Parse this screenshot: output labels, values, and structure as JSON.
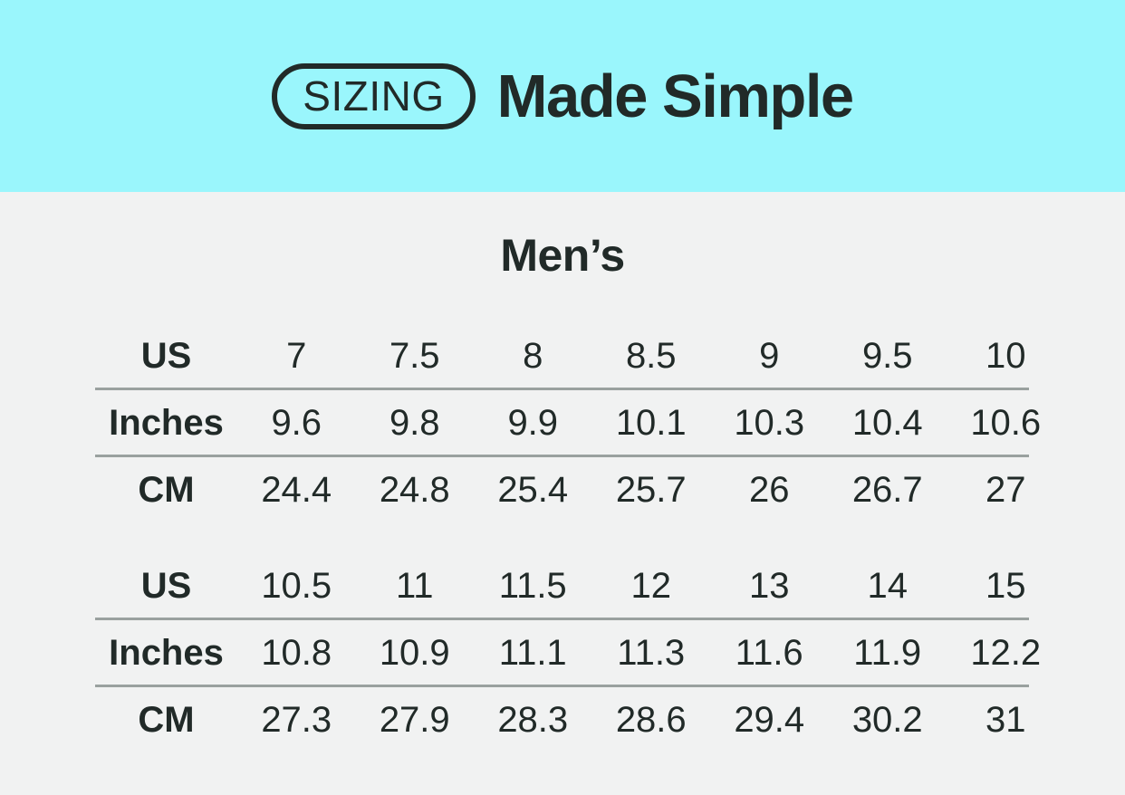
{
  "banner": {
    "badge_label": "SIZING",
    "title": "Made Simple",
    "background_color": "#9af6fc",
    "text_color": "#212a28"
  },
  "section_title": "Men’s",
  "colors": {
    "banner_bg": "#9af6fc",
    "body_bg": "#f1f2f2",
    "text": "#212a28",
    "rule": "#9aa19f"
  },
  "chart_data": {
    "type": "table",
    "title": "SIZING Made Simple — Men’s",
    "tables": [
      {
        "rows": [
          {
            "label": "US",
            "values": [
              "7",
              "7.5",
              "8",
              "8.5",
              "9",
              "9.5",
              "10"
            ]
          },
          {
            "label": "Inches",
            "values": [
              "9.6",
              "9.8",
              "9.9",
              "10.1",
              "10.3",
              "10.4",
              "10.6"
            ]
          },
          {
            "label": "CM",
            "values": [
              "24.4",
              "24.8",
              "25.4",
              "25.7",
              "26",
              "26.7",
              "27"
            ]
          }
        ]
      },
      {
        "rows": [
          {
            "label": "US",
            "values": [
              "10.5",
              "11",
              "11.5",
              "12",
              "13",
              "14",
              "15"
            ]
          },
          {
            "label": "Inches",
            "values": [
              "10.8",
              "10.9",
              "11.1",
              "11.3",
              "11.6",
              "11.9",
              "12.2"
            ]
          },
          {
            "label": "CM",
            "values": [
              "27.3",
              "27.9",
              "28.3",
              "28.6",
              "29.4",
              "30.2",
              "31"
            ]
          }
        ]
      }
    ]
  }
}
